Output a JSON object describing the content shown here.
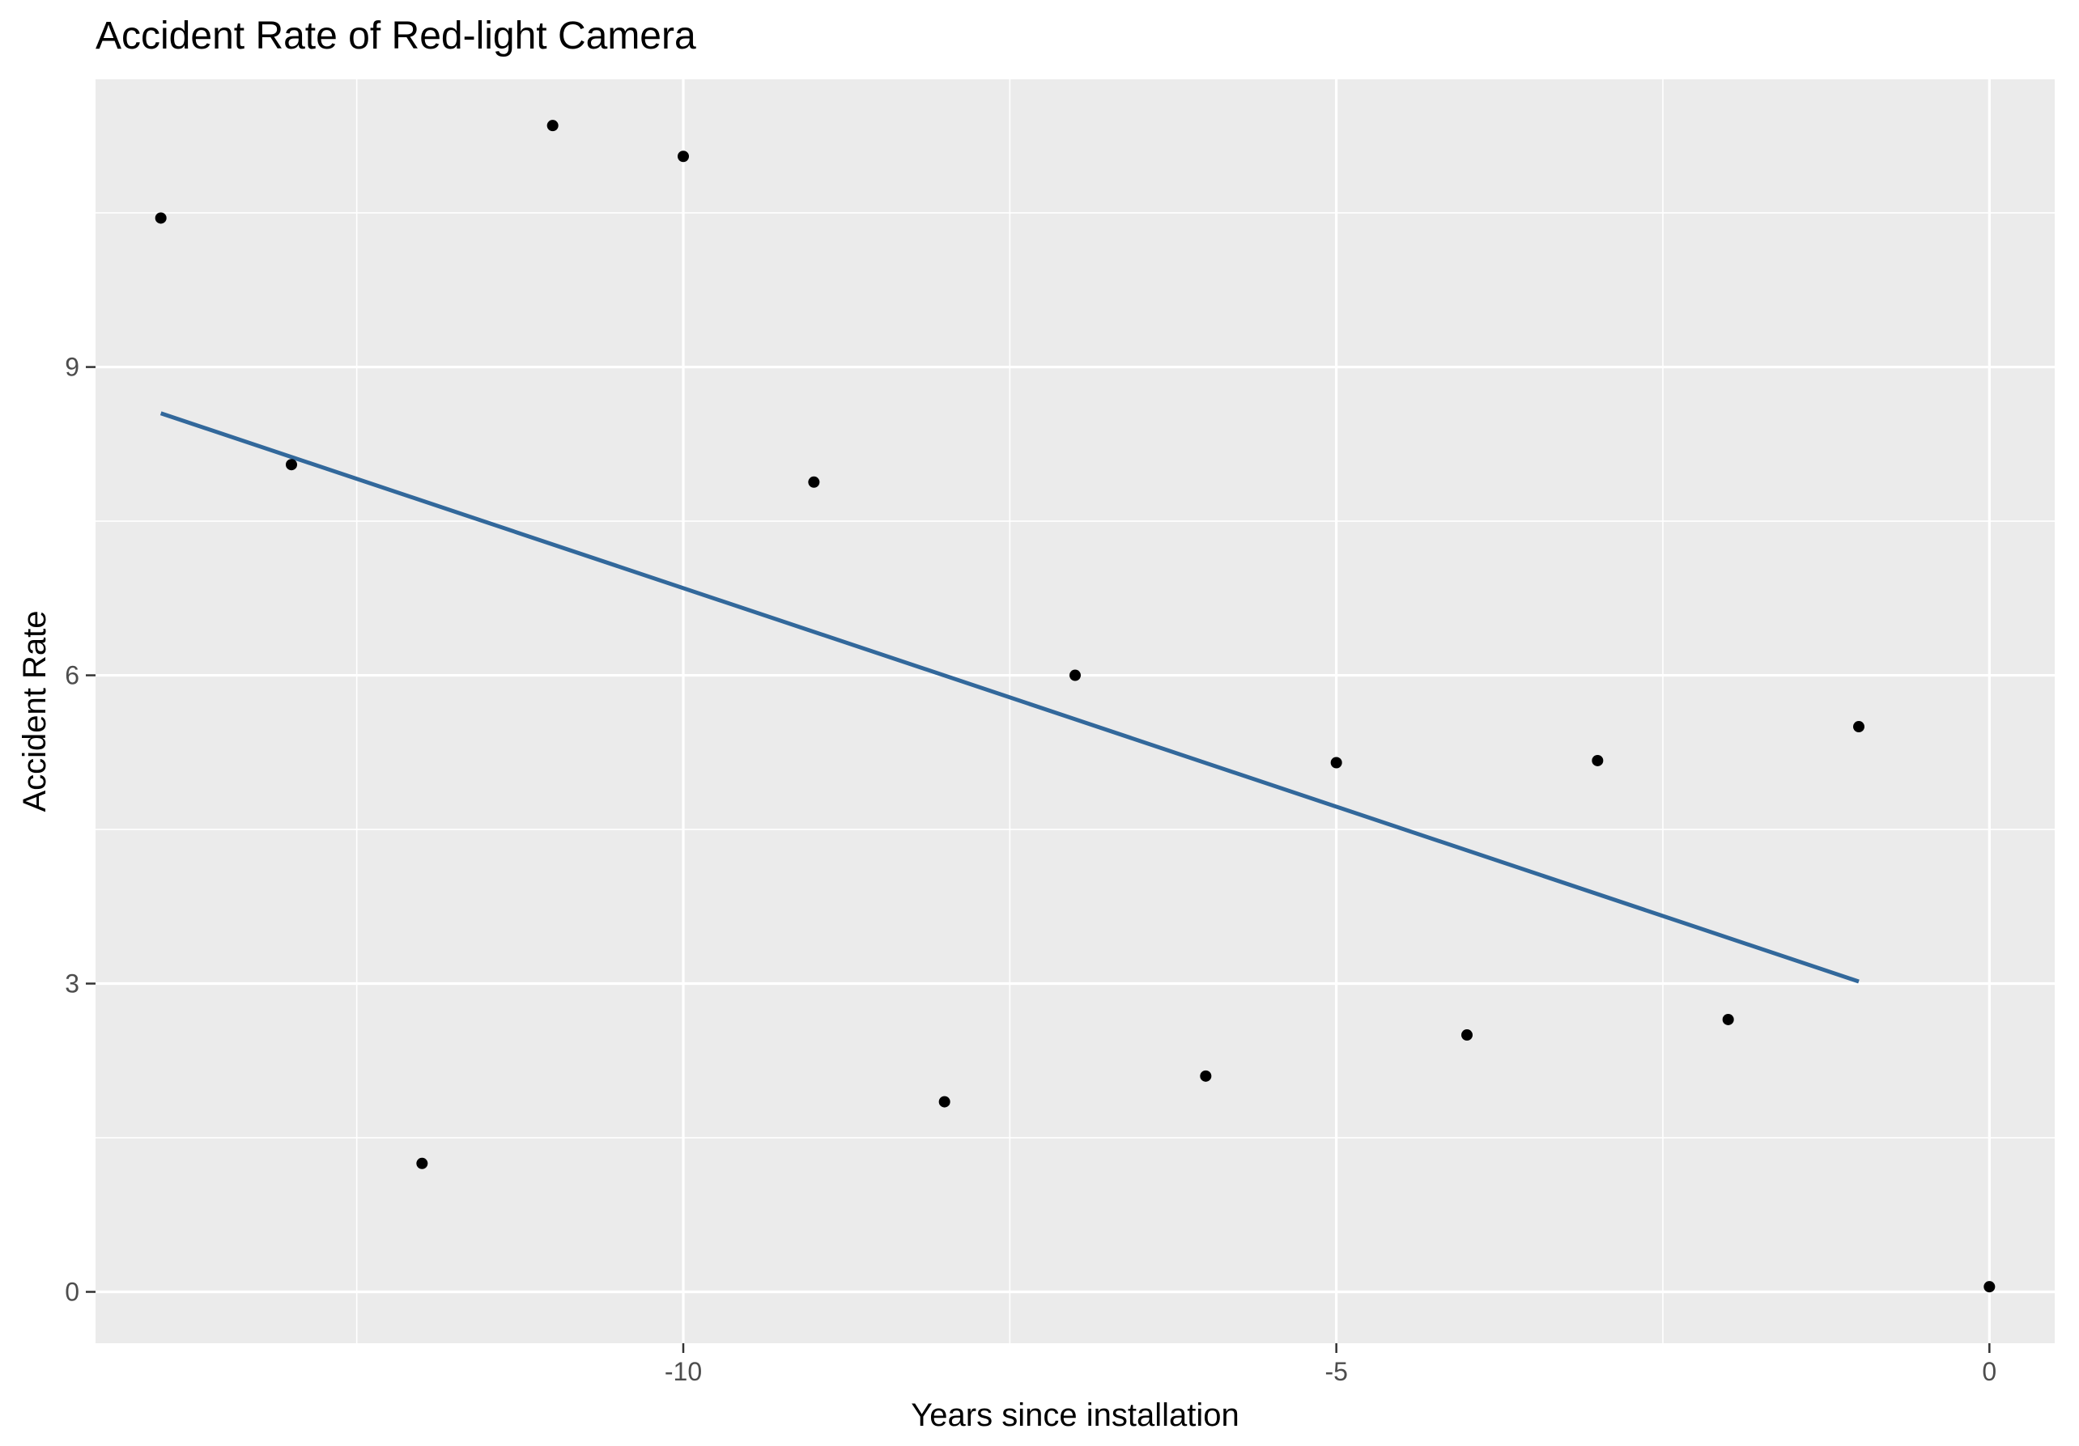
{
  "chart_data": {
    "type": "scatter",
    "title": "Accident Rate of Red-light Camera",
    "xlabel": "Years since installation",
    "ylabel": "Accident Rate",
    "xlim": [
      -14.5,
      0.5
    ],
    "ylim": [
      -0.5,
      11.8
    ],
    "x_ticks": [
      -10,
      -5,
      0
    ],
    "x_tick_labels": [
      "-10",
      "-5",
      "0"
    ],
    "x_minor_ticks": [
      -12.5,
      -7.5,
      -2.5
    ],
    "y_ticks": [
      0,
      3,
      6,
      9
    ],
    "y_tick_labels": [
      "0",
      "3",
      "6",
      "9"
    ],
    "y_minor_ticks": [
      1.5,
      4.5,
      7.5,
      10.5
    ],
    "grid": true,
    "panel_background": "#ebebeb",
    "grid_color": "#ffffff",
    "point_color": "#000000",
    "line_color": "#32689b",
    "points": [
      {
        "x": -14,
        "y": 10.45
      },
      {
        "x": -13,
        "y": 8.05
      },
      {
        "x": -12,
        "y": 1.25
      },
      {
        "x": -11,
        "y": 11.35
      },
      {
        "x": -10,
        "y": 11.05
      },
      {
        "x": -9,
        "y": 7.88
      },
      {
        "x": -8,
        "y": 1.85
      },
      {
        "x": -7,
        "y": 6.0
      },
      {
        "x": -6,
        "y": 2.1
      },
      {
        "x": -5,
        "y": 5.15
      },
      {
        "x": -4,
        "y": 2.5
      },
      {
        "x": -3,
        "y": 5.17
      },
      {
        "x": -2,
        "y": 2.65
      },
      {
        "x": -1,
        "y": 5.5
      },
      {
        "x": 0,
        "y": 0.05
      }
    ],
    "trend_line": {
      "x": [
        -14,
        -1
      ],
      "y": [
        8.55,
        3.02
      ]
    }
  }
}
